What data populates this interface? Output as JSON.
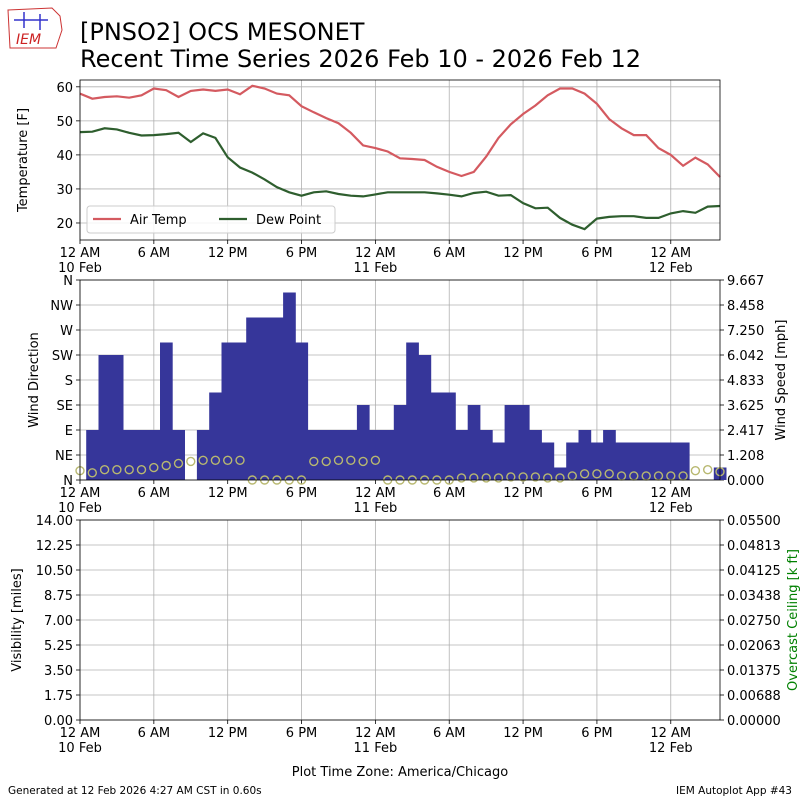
{
  "header": {
    "title_line1": "[PNSO2] OCS MESONET",
    "title_line2": "Recent Time Series 2026 Feb 10 - 2026 Feb 12",
    "logo_text": "IEM"
  },
  "footer": {
    "generated": "Generated at 12 Feb 2026 4:27 AM CST in 0.60s",
    "app": "IEM Autoplot App #43",
    "timezone": "Plot Time Zone: America/Chicago"
  },
  "colors": {
    "air_temp": "#d45a60",
    "dew_point": "#2e5e2e",
    "wind_bar": "#36369a",
    "wind_speed": "#b8b870",
    "ceiling_label": "#008000",
    "grid": "#b0b0b0"
  },
  "x_axis": {
    "ticks": [
      {
        "hour": 0,
        "line1": "12 AM",
        "line2": "10 Feb"
      },
      {
        "hour": 6,
        "line1": "6 AM",
        "line2": ""
      },
      {
        "hour": 12,
        "line1": "12 PM",
        "line2": ""
      },
      {
        "hour": 18,
        "line1": "6 PM",
        "line2": ""
      },
      {
        "hour": 24,
        "line1": "12 AM",
        "line2": "11 Feb"
      },
      {
        "hour": 30,
        "line1": "6 AM",
        "line2": ""
      },
      {
        "hour": 36,
        "line1": "12 PM",
        "line2": ""
      },
      {
        "hour": 42,
        "line1": "6 PM",
        "line2": ""
      },
      {
        "hour": 48,
        "line1": "12 AM",
        "line2": "12 Feb"
      }
    ],
    "range_hours": [
      0,
      52
    ]
  },
  "chart_data": [
    {
      "type": "line",
      "ylabel": "Temperature [F]",
      "ylim": [
        15,
        62
      ],
      "yticks": [
        20,
        30,
        40,
        50,
        60
      ],
      "grid": true,
      "legend_position": "lower-left",
      "series": [
        {
          "name": "Air Temp",
          "x": [
            0,
            1,
            2,
            3,
            4,
            5,
            6,
            7,
            8,
            9,
            10,
            11,
            12,
            13,
            14,
            15,
            16,
            17,
            18,
            19,
            20,
            21,
            22,
            23,
            24,
            25,
            26,
            27,
            28,
            29,
            30,
            31,
            32,
            33,
            34,
            35,
            36,
            37,
            38,
            39,
            40,
            41,
            42,
            43,
            44,
            45,
            46,
            47,
            48,
            49,
            50,
            51,
            52
          ],
          "values": [
            58,
            56.5,
            57,
            57.2,
            56.8,
            57.5,
            59.5,
            59,
            57,
            58.8,
            59.2,
            58.8,
            59.2,
            57.8,
            60.3,
            59.5,
            58,
            57.5,
            54.3,
            52.5,
            50.8,
            49.3,
            46.5,
            42.8,
            42,
            41,
            39,
            38.8,
            38.5,
            36.5,
            35,
            33.8,
            35,
            39.5,
            45,
            49,
            52,
            54.5,
            57.5,
            59.5,
            59.5,
            58,
            55,
            50.5,
            47.8,
            45.8,
            45.8,
            42,
            40,
            36.8,
            39.2,
            37.2,
            33.5
          ]
        },
        {
          "name": "Dew Point",
          "x": [
            0,
            1,
            2,
            3,
            4,
            5,
            6,
            7,
            8,
            9,
            10,
            11,
            12,
            13,
            14,
            15,
            16,
            17,
            18,
            19,
            20,
            21,
            22,
            23,
            24,
            25,
            26,
            27,
            28,
            29,
            30,
            31,
            32,
            33,
            34,
            35,
            36,
            37,
            38,
            39,
            40,
            41,
            42,
            43,
            44,
            45,
            46,
            47,
            48,
            49,
            50,
            51,
            52
          ],
          "values": [
            46.7,
            46.8,
            47.8,
            47.5,
            46.5,
            45.7,
            45.8,
            46.1,
            46.5,
            43.8,
            46.3,
            45,
            39.3,
            36.3,
            34.8,
            32.8,
            30.5,
            29,
            28,
            29,
            29.3,
            28.5,
            28,
            27.8,
            28.4,
            29,
            29,
            29,
            29,
            28.7,
            28.3,
            27.8,
            28.8,
            29.2,
            28,
            28.2,
            25.8,
            24.3,
            24.5,
            21.5,
            19.5,
            18.2,
            21.3,
            21.8,
            22,
            22,
            21.5,
            21.5,
            22.8,
            23.5,
            23,
            24.8,
            25
          ]
        }
      ]
    },
    {
      "type": "bar",
      "ylabel_left": "Wind Direction",
      "ylabel_right": "Wind Speed [mph]",
      "direction_ticks": [
        "N",
        "NE",
        "E",
        "SE",
        "S",
        "SW",
        "W",
        "NW",
        "N"
      ],
      "direction_range_degrees": [
        0,
        360
      ],
      "speed_ticks": [
        "0.000",
        "1.208",
        "2.417",
        "3.625",
        "4.833",
        "6.042",
        "7.250",
        "8.458",
        "9.667"
      ],
      "speed_range_mph": [
        0,
        9.667
      ],
      "grid": true,
      "series": [
        {
          "name": "Wind Direction",
          "x": [
            0,
            1,
            2,
            3,
            4,
            5,
            6,
            7,
            8,
            9,
            10,
            11,
            12,
            13,
            14,
            15,
            16,
            17,
            18,
            19,
            20,
            21,
            22,
            23,
            24,
            25,
            26,
            27,
            28,
            29,
            30,
            31,
            32,
            33,
            34,
            35,
            36,
            37,
            38,
            39,
            40,
            41,
            42,
            43,
            44,
            45,
            46,
            47,
            48,
            49,
            50,
            51,
            52
          ],
          "values": [
            0,
            90,
            225,
            225,
            90,
            90,
            90,
            247.5,
            90,
            0,
            90,
            157.5,
            247.5,
            247.5,
            292.5,
            292.5,
            292.5,
            337.5,
            247.5,
            90,
            90,
            90,
            90,
            135,
            90,
            90,
            135,
            247.5,
            225,
            157.5,
            157.5,
            90,
            135,
            90,
            67.5,
            135,
            135,
            90,
            67.5,
            22.5,
            67.5,
            90,
            67.5,
            90,
            67.5,
            67.5,
            67.5,
            67.5,
            67.5,
            67.5,
            0,
            0,
            22.5
          ]
        },
        {
          "name": "Wind Speed",
          "x": [
            0,
            1,
            2,
            3,
            4,
            5,
            6,
            7,
            8,
            9,
            10,
            11,
            12,
            13,
            14,
            15,
            16,
            17,
            18,
            19,
            20,
            21,
            22,
            23,
            24,
            25,
            26,
            27,
            28,
            29,
            30,
            31,
            32,
            33,
            34,
            35,
            36,
            37,
            38,
            39,
            40,
            41,
            42,
            43,
            44,
            45,
            46,
            47,
            48,
            49,
            50,
            51,
            52
          ],
          "values": [
            0.45,
            0.35,
            0.5,
            0.5,
            0.5,
            0.5,
            0.6,
            0.7,
            0.8,
            0.9,
            0.95,
            0.95,
            0.95,
            0.95,
            0,
            0,
            0,
            0,
            0,
            0.9,
            0.9,
            0.95,
            0.95,
            0.9,
            0.95,
            0,
            0,
            0,
            0,
            0,
            0,
            0.1,
            0.1,
            0.1,
            0.1,
            0.15,
            0.15,
            0.15,
            0.1,
            0.1,
            0.2,
            0.3,
            0.3,
            0.3,
            0.2,
            0.2,
            0.2,
            0.2,
            0.2,
            0.2,
            0.45,
            0.5,
            0.4
          ]
        }
      ]
    },
    {
      "type": "line",
      "ylabel_left": "Visibility [miles]",
      "ylabel_right": "Overcast Ceiling [k ft]",
      "visibility_ticks": [
        "0.00",
        "1.75",
        "3.50",
        "5.25",
        "7.00",
        "8.75",
        "10.50",
        "12.25",
        "14.00"
      ],
      "visibility_range": [
        0,
        14
      ],
      "ceiling_ticks": [
        "0.00000",
        "0.00688",
        "0.01375",
        "0.02063",
        "0.02750",
        "0.03438",
        "0.04125",
        "0.04813",
        "0.05500"
      ],
      "ceiling_range": [
        0,
        0.055
      ],
      "grid": true,
      "series": []
    }
  ]
}
